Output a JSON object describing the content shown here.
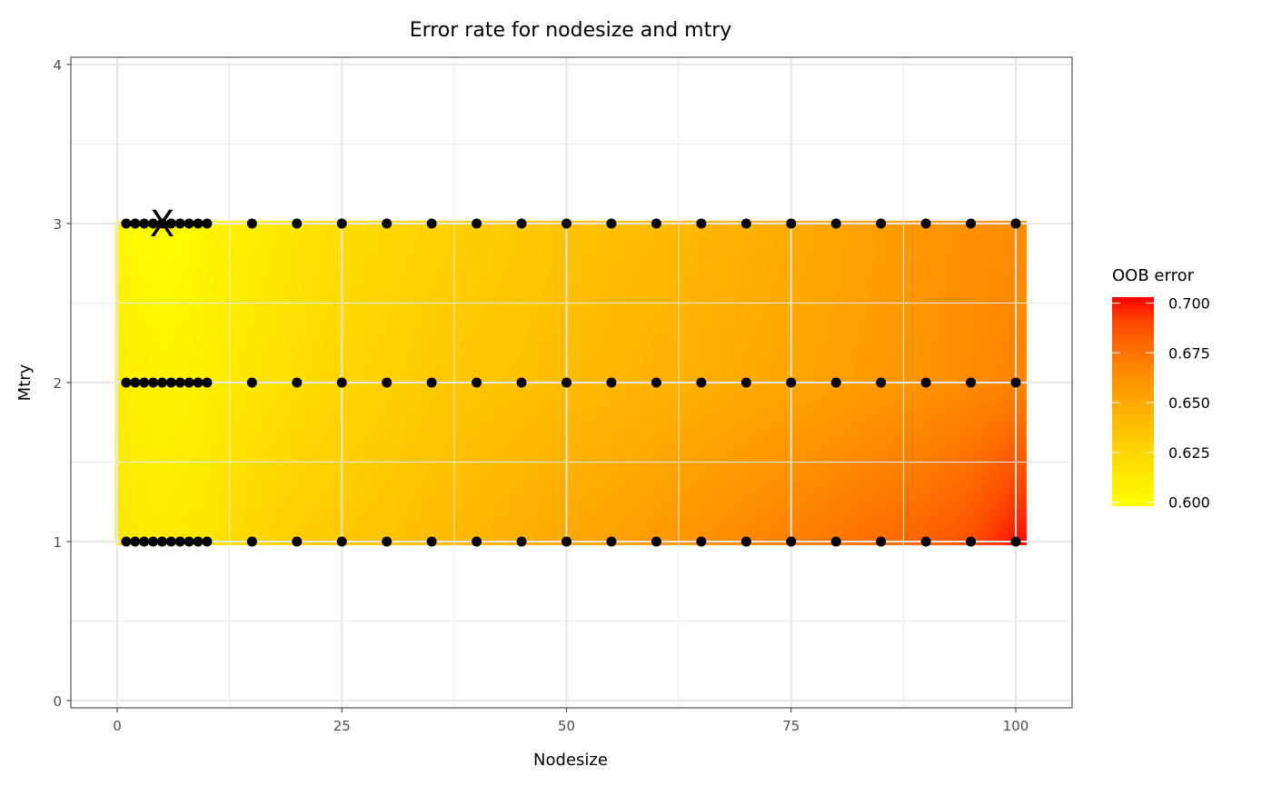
{
  "chart_data": {
    "type": "heatmap",
    "title": "Error rate for nodesize and mtry",
    "xlabel": "Nodesize",
    "ylabel": "Mtry",
    "xlim": [
      -3,
      104
    ],
    "ylim": [
      -0.05,
      4.05
    ],
    "x_ticks": [
      0,
      25,
      50,
      75,
      100
    ],
    "x_tick_labels": [
      "0",
      "25",
      "50",
      "75",
      "100"
    ],
    "y_ticks": [
      0,
      1,
      2,
      3,
      4
    ],
    "y_tick_labels": [
      "0",
      "1",
      "2",
      "3",
      "4"
    ],
    "grid": true,
    "nodesize": [
      1,
      2,
      3,
      4,
      5,
      6,
      7,
      8,
      9,
      10,
      15,
      20,
      25,
      30,
      35,
      40,
      45,
      50,
      55,
      60,
      65,
      70,
      75,
      80,
      85,
      90,
      95,
      100
    ],
    "mtry": [
      1,
      2,
      3
    ],
    "series": [
      {
        "mtry": 1,
        "values": [
          0.614,
          0.613,
          0.613,
          0.612,
          0.612,
          0.613,
          0.613,
          0.614,
          0.614,
          0.615,
          0.625,
          0.63,
          0.633,
          0.636,
          0.64,
          0.643,
          0.647,
          0.651,
          0.654,
          0.658,
          0.662,
          0.666,
          0.67,
          0.674,
          0.678,
          0.682,
          0.688,
          0.703
        ]
      },
      {
        "mtry": 2,
        "values": [
          0.609,
          0.608,
          0.608,
          0.607,
          0.607,
          0.607,
          0.608,
          0.608,
          0.609,
          0.61,
          0.615,
          0.62,
          0.625,
          0.628,
          0.632,
          0.635,
          0.637,
          0.64,
          0.642,
          0.645,
          0.647,
          0.65,
          0.652,
          0.655,
          0.658,
          0.661,
          0.665,
          0.668
        ]
      },
      {
        "mtry": 3,
        "values": [
          0.603,
          0.601,
          0.6,
          0.599,
          0.598,
          0.599,
          0.6,
          0.601,
          0.603,
          0.605,
          0.61,
          0.615,
          0.62,
          0.623,
          0.627,
          0.63,
          0.633,
          0.636,
          0.638,
          0.64,
          0.643,
          0.646,
          0.649,
          0.652,
          0.656,
          0.66,
          0.662,
          0.664
        ]
      }
    ],
    "best": {
      "nodesize": 5,
      "mtry": 3,
      "marker": "X"
    },
    "legend": {
      "title": "OOB error",
      "placement": "right",
      "range": [
        0.598,
        0.703
      ],
      "ticks": [
        0.6,
        0.625,
        0.65,
        0.675,
        0.7
      ],
      "tick_labels": [
        "0.600",
        "0.625",
        "0.650",
        "0.675",
        "0.700"
      ],
      "low_color": "#FFFF00",
      "high_color": "#FF0000"
    },
    "point_color": "#000000"
  }
}
